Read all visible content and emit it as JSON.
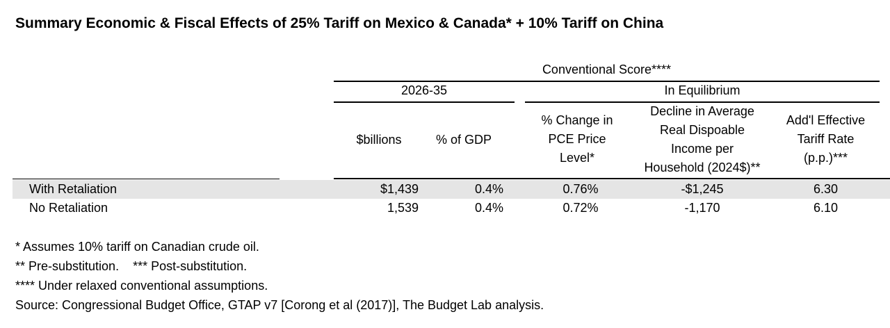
{
  "title": "Summary Economic & Fiscal Effects of 25% Tariff on Mexico & Canada* + 10% Tariff on China",
  "table": {
    "group_header": "Conventional Score****",
    "subgroup_left": "2026-35",
    "subgroup_right": "In Equilibrium",
    "columns": {
      "billions": "$billions",
      "gdp": "% of GDP",
      "pce": [
        "% Change in",
        "PCE Price",
        "Level*"
      ],
      "income": [
        "Decline in Average",
        "Real Dispoable",
        "Income per",
        "Household (2024$)**"
      ],
      "tariff": [
        "Add'l Effective",
        "Tariff Rate",
        "(p.p.)***"
      ]
    },
    "rows": [
      {
        "label": "With Retaliation",
        "billions": "$1,439",
        "gdp": "0.4%",
        "pce": "0.76%",
        "income": "-$1,245",
        "tariff": "6.30"
      },
      {
        "label": "No Retaliation",
        "billions": "1,539",
        "gdp": "0.4%",
        "pce": "0.72%",
        "income": "-1,170",
        "tariff": "6.10"
      }
    ]
  },
  "notes": [
    "* Assumes 10% tariff on Canadian crude oil.",
    "** Pre-substitution.    *** Post-substitution.",
    "**** Under relaxed conventional assumptions.",
    "Source: Congressional Budget Office, GTAP v7 [Corong et al (2017)], The Budget Lab analysis."
  ],
  "colors": {
    "text": "#000000",
    "stripe": "#e5e5e5",
    "background": "#ffffff"
  }
}
